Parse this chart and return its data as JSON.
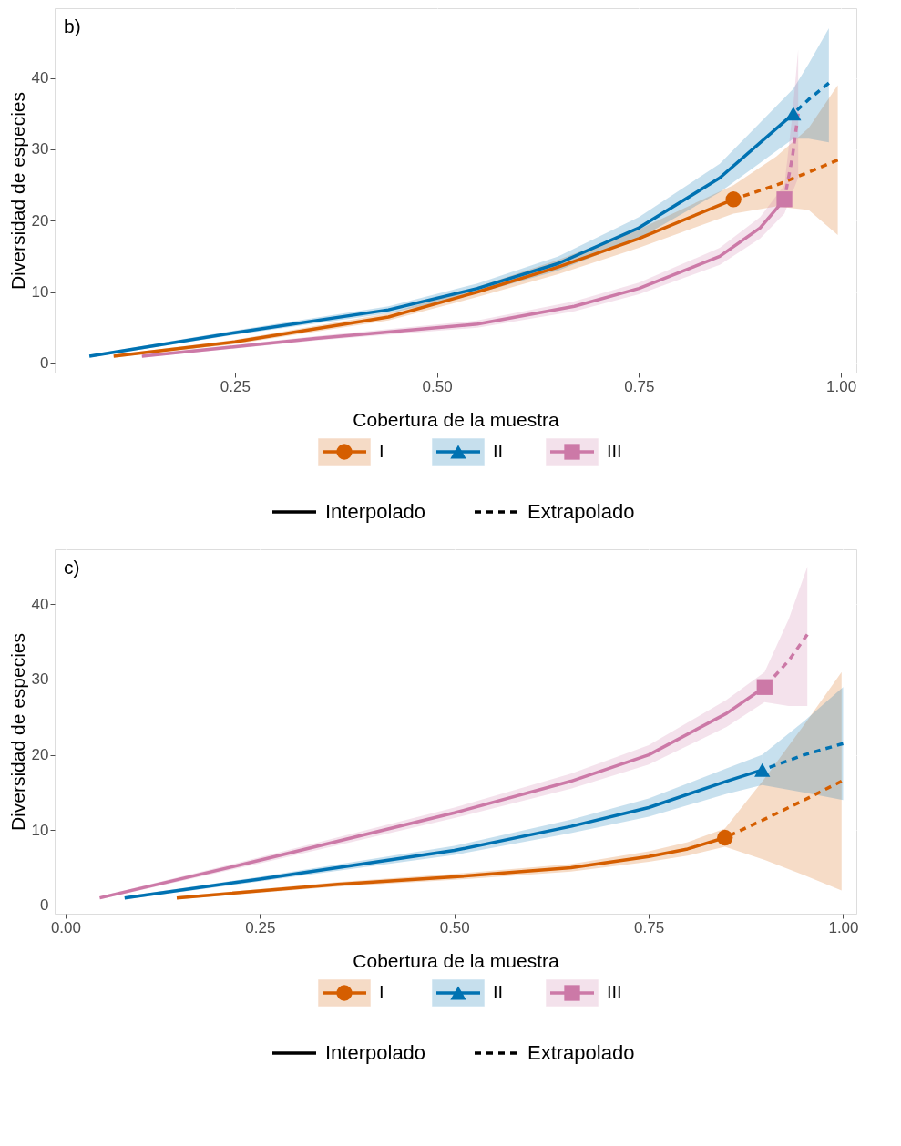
{
  "chart_data": [
    {
      "type": "line",
      "title": "b)",
      "xlabel": "Cobertura de la muestra",
      "ylabel": "Diversidad de especies",
      "xlim": [
        0.027,
        1.019
      ],
      "ylim": [
        -1.3,
        49.8
      ],
      "xticks": [
        {
          "value": 0.25,
          "label": "0.25"
        },
        {
          "value": 0.5,
          "label": "0.50"
        },
        {
          "value": 0.75,
          "label": "0.75"
        },
        {
          "value": 1.0,
          "label": "1.00"
        }
      ],
      "yticks": [
        0,
        10,
        20,
        30,
        40
      ],
      "grid": true,
      "legend": "bottom",
      "annotations": [
        "Interpolado",
        "Extrapolado"
      ],
      "series": [
        {
          "name": "I",
          "type": "scatter",
          "marker": "circle",
          "color": "#d55e00",
          "x": [
            0.867
          ],
          "values": [
            23
          ]
        },
        {
          "name": "II",
          "type": "scatter",
          "marker": "triangle",
          "color": "#0072b2",
          "x": [
            0.941
          ],
          "values": [
            35
          ]
        },
        {
          "name": "III",
          "type": "scatter",
          "marker": "square",
          "color": "#cc79a7",
          "x": [
            0.93
          ],
          "values": [
            23
          ]
        },
        {
          "type": "line",
          "line_style": "solid",
          "color": "#d55e00",
          "x": [
            0.1,
            0.25,
            0.44,
            0.55,
            0.65,
            0.75,
            0.867
          ],
          "values": [
            1,
            3,
            6.5,
            10,
            13.5,
            17.5,
            23
          ],
          "lower": [
            0.8,
            2.7,
            6,
            9.3,
            12.5,
            16.2,
            21
          ],
          "upper": [
            1.2,
            3.3,
            7,
            10.7,
            14.5,
            18.8,
            25
          ]
        },
        {
          "type": "line",
          "line_style": "dashed",
          "color": "#d55e00",
          "x": [
            0.867,
            0.92,
            0.96,
            0.996
          ],
          "values": [
            23,
            25,
            26.8,
            28.5
          ],
          "lower": [
            21,
            22,
            21.5,
            18
          ],
          "upper": [
            25,
            29,
            33,
            39
          ]
        },
        {
          "type": "line",
          "line_style": "solid",
          "color": "#0072b2",
          "x": [
            0.07,
            0.25,
            0.44,
            0.55,
            0.65,
            0.75,
            0.85,
            0.941
          ],
          "values": [
            1,
            4.3,
            7.5,
            10.5,
            14,
            19,
            26,
            35
          ],
          "lower": [
            0.8,
            4,
            7,
            9.8,
            13,
            17.5,
            24,
            31.5
          ],
          "upper": [
            1.2,
            4.6,
            8,
            11.2,
            15,
            20.5,
            28,
            38.5
          ]
        },
        {
          "type": "line",
          "line_style": "dashed",
          "color": "#0072b2",
          "x": [
            0.941,
            0.96,
            0.985
          ],
          "values": [
            35,
            37,
            39.3
          ],
          "lower": [
            31.5,
            31.5,
            31
          ],
          "upper": [
            38.5,
            42,
            47
          ]
        },
        {
          "type": "line",
          "line_style": "solid",
          "color": "#cc79a7",
          "x": [
            0.135,
            0.35,
            0.55,
            0.67,
            0.75,
            0.85,
            0.9,
            0.93
          ],
          "values": [
            1,
            3.5,
            5.5,
            8,
            10.5,
            15,
            19,
            23
          ],
          "lower": [
            0.8,
            3.2,
            5,
            7.3,
            9.7,
            13.8,
            17.5,
            21
          ],
          "upper": [
            1.2,
            3.8,
            6,
            8.7,
            11.3,
            16.2,
            20.5,
            25
          ]
        },
        {
          "type": "line",
          "line_style": "dashed",
          "color": "#cc79a7",
          "x": [
            0.93,
            0.94,
            0.947
          ],
          "values": [
            23,
            29,
            35
          ],
          "lower": [
            21,
            24,
            26
          ],
          "upper": [
            25,
            35,
            44
          ]
        }
      ]
    },
    {
      "type": "line",
      "title": "c)",
      "xlabel": "Cobertura de la muestra",
      "ylabel": "Diversidad de especies",
      "xlim": [
        -0.014,
        1.017
      ],
      "ylim": [
        -1.1,
        47.3
      ],
      "xticks": [
        {
          "value": 0.0,
          "label": "0.00"
        },
        {
          "value": 0.25,
          "label": "0.25"
        },
        {
          "value": 0.5,
          "label": "0.50"
        },
        {
          "value": 0.75,
          "label": "0.75"
        },
        {
          "value": 1.0,
          "label": "1.00"
        }
      ],
      "yticks": [
        0,
        10,
        20,
        30,
        40
      ],
      "grid": true,
      "legend": "bottom",
      "annotations": [
        "Interpolado",
        "Extrapolado"
      ],
      "series": [
        {
          "name": "I",
          "type": "scatter",
          "marker": "circle",
          "color": "#d55e00",
          "x": [
            0.848
          ],
          "values": [
            9
          ]
        },
        {
          "name": "II",
          "type": "scatter",
          "marker": "triangle",
          "color": "#0072b2",
          "x": [
            0.896
          ],
          "values": [
            18
          ]
        },
        {
          "name": "III",
          "type": "scatter",
          "marker": "square",
          "color": "#cc79a7",
          "x": [
            0.899
          ],
          "values": [
            29
          ]
        },
        {
          "type": "line",
          "line_style": "solid",
          "color": "#d55e00",
          "x": [
            0.143,
            0.35,
            0.5,
            0.65,
            0.75,
            0.8,
            0.848
          ],
          "values": [
            1,
            2.8,
            3.8,
            5,
            6.5,
            7.5,
            9
          ],
          "lower": [
            0.8,
            2.5,
            3.4,
            4.5,
            5.8,
            6.6,
            7.8
          ],
          "upper": [
            1.2,
            3.1,
            4.2,
            5.5,
            7.2,
            8.4,
            10.2
          ]
        },
        {
          "type": "line",
          "line_style": "dashed",
          "color": "#d55e00",
          "x": [
            0.848,
            0.9,
            0.95,
            0.998
          ],
          "values": [
            9,
            11.5,
            14,
            16.5
          ],
          "lower": [
            7.8,
            6,
            4,
            2
          ],
          "upper": [
            10.2,
            17,
            24,
            31
          ]
        },
        {
          "type": "line",
          "line_style": "solid",
          "color": "#0072b2",
          "x": [
            0.076,
            0.25,
            0.5,
            0.65,
            0.75,
            0.85,
            0.896
          ],
          "values": [
            1,
            3.5,
            7.3,
            10.5,
            13,
            16.5,
            18
          ],
          "lower": [
            0.8,
            3.2,
            6.7,
            9.6,
            11.8,
            14.8,
            16
          ],
          "upper": [
            1.2,
            3.8,
            7.9,
            11.4,
            14.2,
            18.2,
            20
          ]
        },
        {
          "type": "line",
          "line_style": "dashed",
          "color": "#0072b2",
          "x": [
            0.896,
            0.95,
            1.0
          ],
          "values": [
            18,
            20,
            21.5
          ],
          "lower": [
            16,
            15,
            14
          ],
          "upper": [
            20,
            24.5,
            29
          ]
        },
        {
          "type": "line",
          "line_style": "solid",
          "color": "#cc79a7",
          "x": [
            0.044,
            0.25,
            0.5,
            0.65,
            0.75,
            0.85,
            0.899
          ],
          "values": [
            1,
            6,
            12.3,
            16.5,
            20,
            25.5,
            29
          ],
          "lower": [
            0.8,
            5.6,
            11.6,
            15.5,
            18.7,
            23.7,
            27
          ],
          "upper": [
            1.2,
            6.4,
            13,
            17.5,
            21.3,
            27.3,
            31
          ]
        },
        {
          "type": "line",
          "line_style": "dashed",
          "color": "#cc79a7",
          "x": [
            0.899,
            0.93,
            0.954
          ],
          "values": [
            29,
            32.5,
            36
          ],
          "lower": [
            27,
            26.5,
            26.5
          ],
          "upper": [
            31,
            38,
            45
          ]
        }
      ]
    }
  ]
}
